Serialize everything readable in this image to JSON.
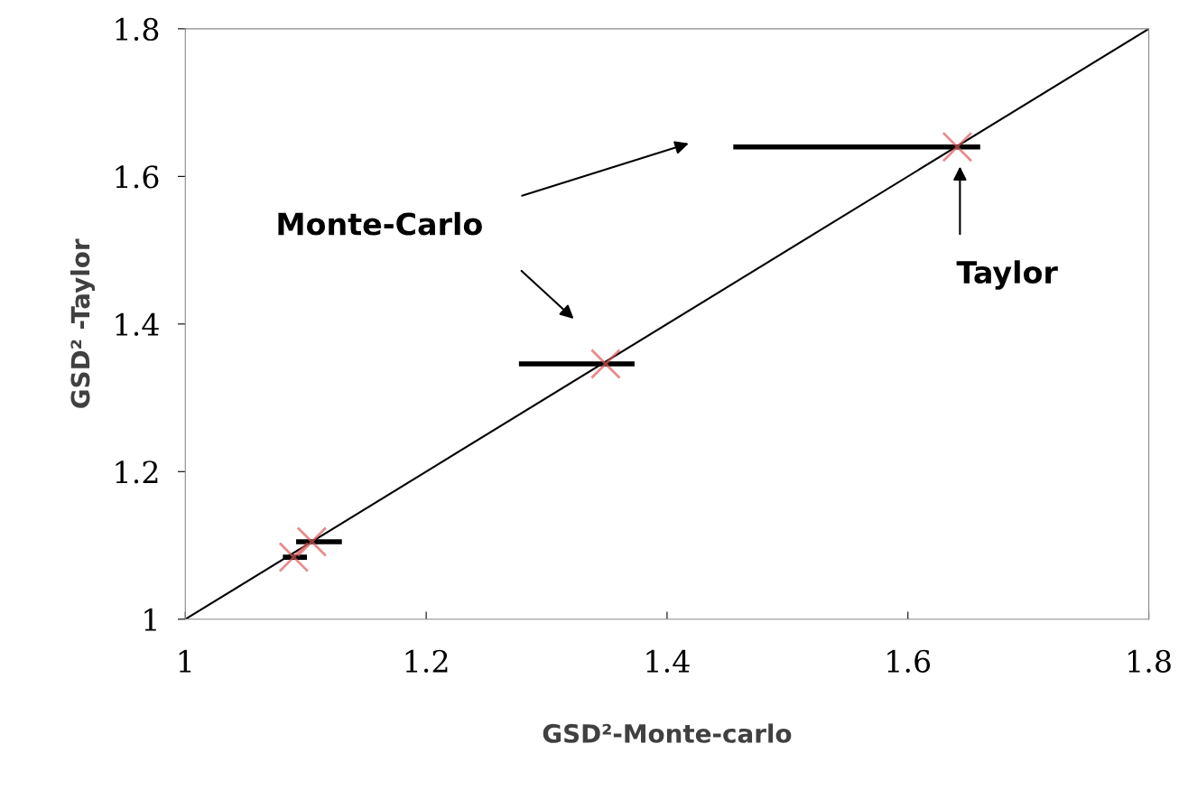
{
  "chart_data": {
    "type": "scatter",
    "xlabel": "GSD²-Monte-carlo",
    "ylabel": "GSD² -Taylor",
    "xlim": [
      1,
      1.8
    ],
    "ylim": [
      1,
      1.8
    ],
    "xticks": [
      1,
      1.2,
      1.4,
      1.6,
      1.8
    ],
    "yticks": [
      1,
      1.2,
      1.4,
      1.6,
      1.8
    ],
    "grid": false,
    "legend": false,
    "series": [
      {
        "color": "#e05a5a",
        "marker": "cross",
        "x": [
          1.09,
          1.105,
          1.349,
          1.641
        ],
        "values": [
          1.084,
          1.105,
          1.346,
          1.64
        ],
        "xerrors": [
          [
            1.081,
            1.101
          ],
          [
            1.092,
            1.13
          ],
          [
            1.277,
            1.373
          ],
          [
            1.455,
            1.66
          ]
        ]
      },
      {
        "type": "line",
        "color": "#000000",
        "marker": "none",
        "line_style": "solid",
        "x": [
          1,
          1.8
        ],
        "values": [
          1,
          1.8
        ]
      }
    ],
    "annotations": [
      "Monte-Carlo",
      "Taylor"
    ]
  }
}
